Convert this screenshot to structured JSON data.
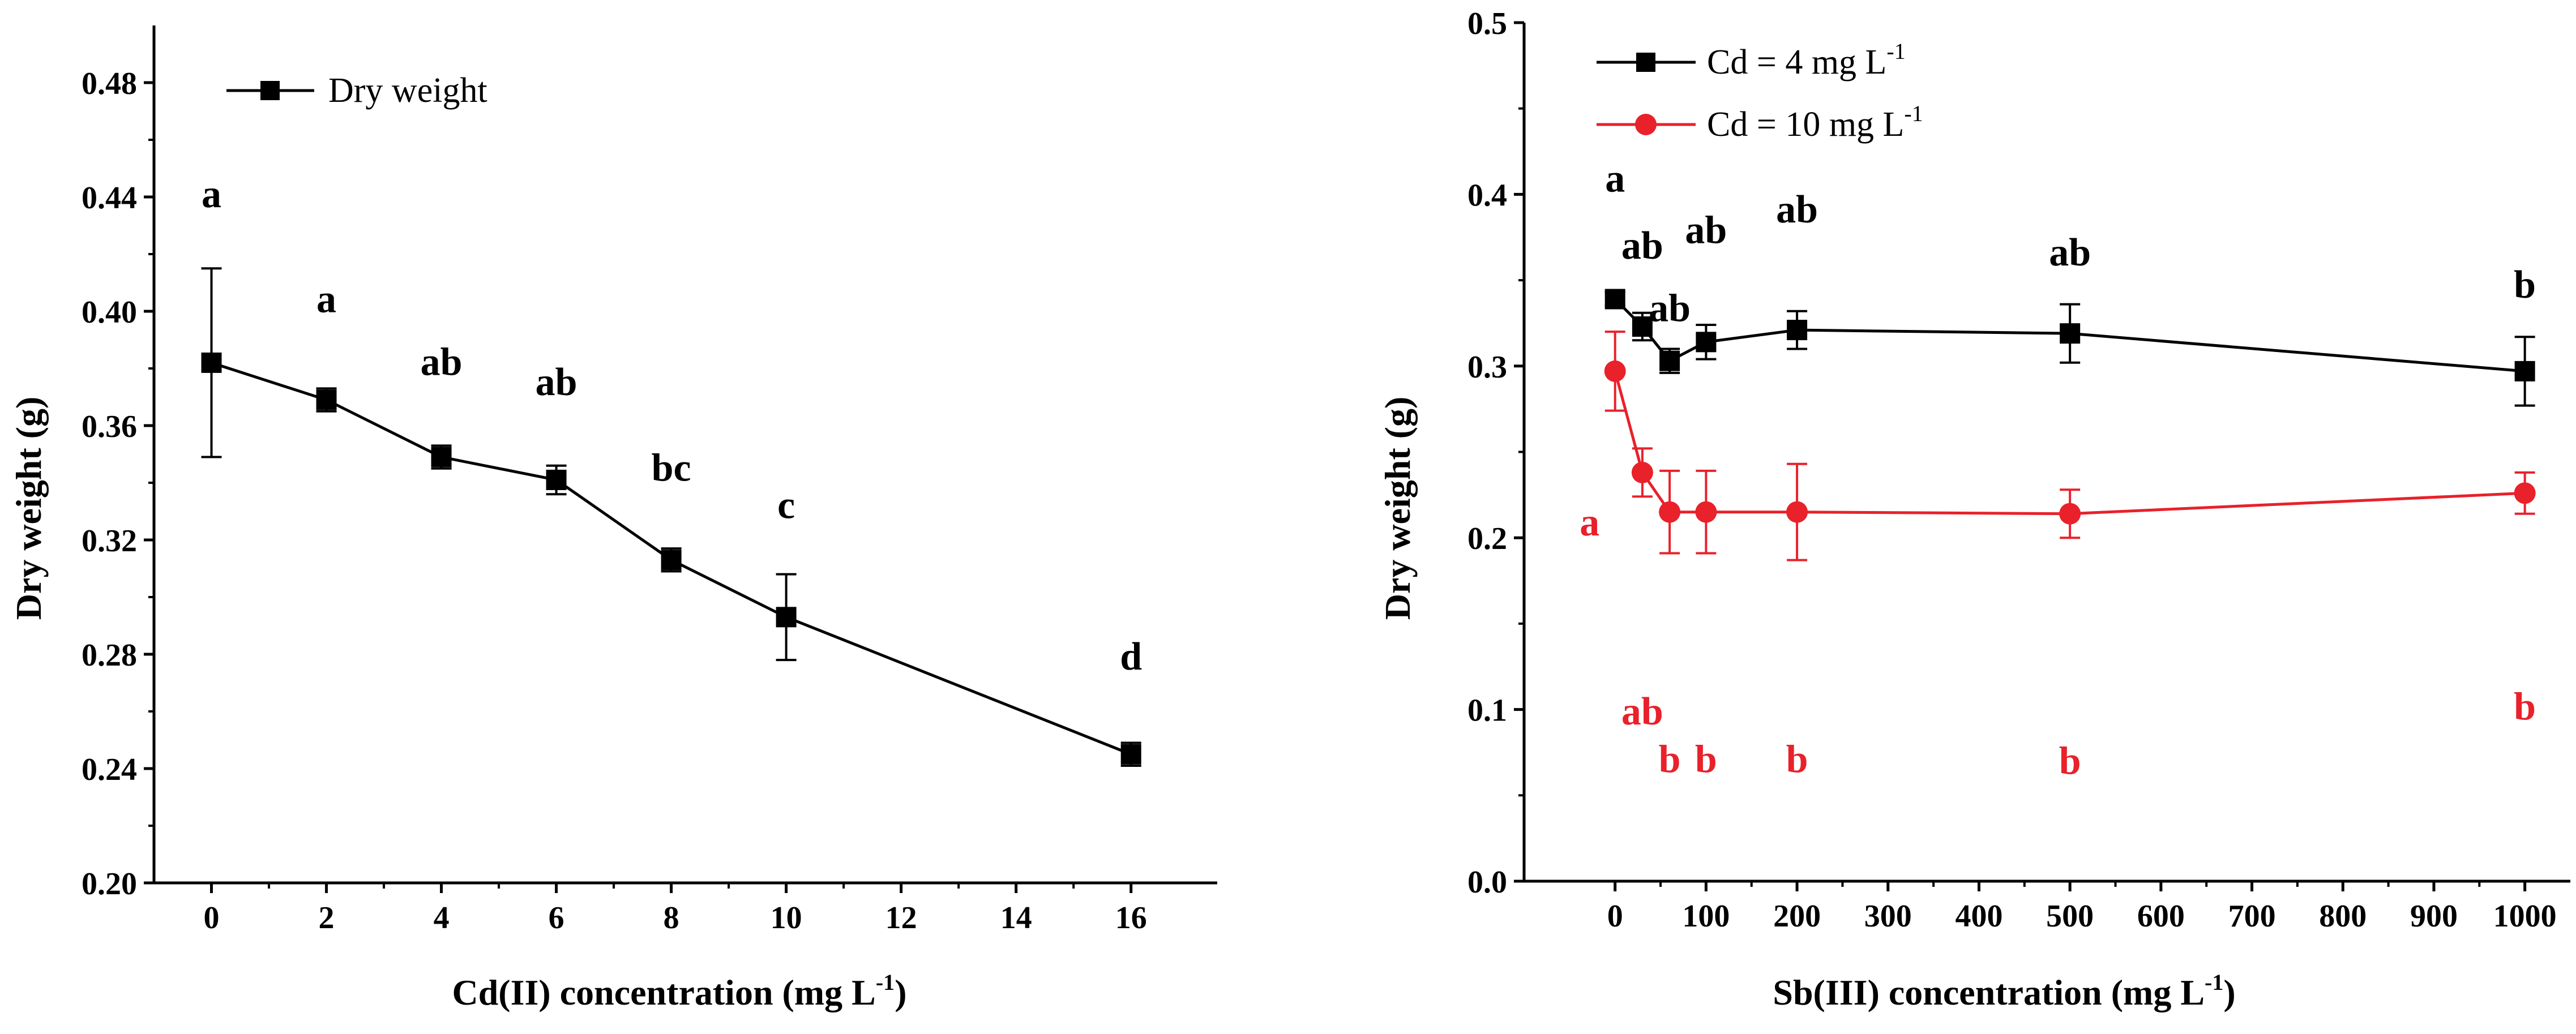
{
  "chart_data": [
    {
      "type": "line",
      "x": [
        0,
        2,
        4,
        6,
        8,
        10,
        16
      ],
      "series": [
        {
          "name": "Dry weight",
          "color": "#000000",
          "marker": "square",
          "values": [
            0.382,
            0.369,
            0.349,
            0.341,
            0.313,
            0.293,
            0.245
          ],
          "errors": [
            0.033,
            0.004,
            0.004,
            0.005,
            0.004,
            0.015,
            0.004
          ],
          "letters": [
            "a",
            "a",
            "ab",
            "ab",
            "bc",
            "c",
            "d"
          ]
        }
      ],
      "legend": {
        "label": "Dry weight",
        "position": "top-left"
      },
      "xlabel": {
        "main": "Cd(II) concentration (mg L",
        "sup": "-1",
        "close": ")"
      },
      "ylabel": "Dry weight (g)",
      "xlim": [
        -1,
        17.5
      ],
      "ylim": [
        0.2,
        0.5
      ],
      "xticks": [
        0,
        2,
        4,
        6,
        8,
        10,
        12,
        14,
        16
      ],
      "yticks": [
        0.2,
        0.24,
        0.28,
        0.32,
        0.36,
        0.4,
        0.44,
        0.48
      ],
      "xticklabels": [
        "0",
        "2",
        "4",
        "6",
        "8",
        "10",
        "12",
        "14",
        "16"
      ],
      "yticklabels": [
        "0.20",
        "0.24",
        "0.28",
        "0.32",
        "0.36",
        "0.40",
        "0.44",
        "0.48"
      ]
    },
    {
      "type": "line",
      "x": [
        0,
        30,
        60,
        100,
        200,
        500,
        1000
      ],
      "series": [
        {
          "name_main": "Cd = 4 mg L",
          "name_sup": "-1",
          "color": "#000000",
          "marker": "square",
          "values": [
            0.339,
            0.323,
            0.303,
            0.314,
            0.321,
            0.319,
            0.297
          ],
          "errors": [
            0.004,
            0.008,
            0.007,
            0.01,
            0.011,
            0.017,
            0.02
          ],
          "letters": [
            "a",
            "ab",
            "ab",
            "ab",
            "ab",
            "ab",
            "b"
          ]
        },
        {
          "name_main": "Cd = 10 mg L",
          "name_sup": "-1",
          "color": "#e8212b",
          "marker": "circle",
          "values": [
            0.297,
            0.238,
            0.215,
            0.215,
            0.215,
            0.214,
            0.226
          ],
          "errors": [
            0.023,
            0.014,
            0.024,
            0.024,
            0.028,
            0.014,
            0.012
          ],
          "letters": [
            "a",
            "ab",
            "b",
            "b",
            "b",
            "b",
            "b"
          ]
        }
      ],
      "xlabel": {
        "main": "Sb(III) concentration (mg L",
        "sup": "-1",
        "close": ")"
      },
      "ylabel": "Dry weight (g)",
      "xlim": [
        -100,
        1050
      ],
      "ylim": [
        0.0,
        0.5
      ],
      "xticks": [
        0,
        100,
        200,
        300,
        400,
        500,
        600,
        700,
        800,
        900,
        1000
      ],
      "yticks": [
        0.0,
        0.1,
        0.2,
        0.3,
        0.4,
        0.5
      ],
      "xticklabels": [
        "0",
        "100",
        "200",
        "300",
        "400",
        "500",
        "600",
        "700",
        "800",
        "900",
        "1000"
      ],
      "yticklabels": [
        "0.0",
        "0.1",
        "0.2",
        "0.3",
        "0.4",
        "0.5"
      ]
    }
  ]
}
